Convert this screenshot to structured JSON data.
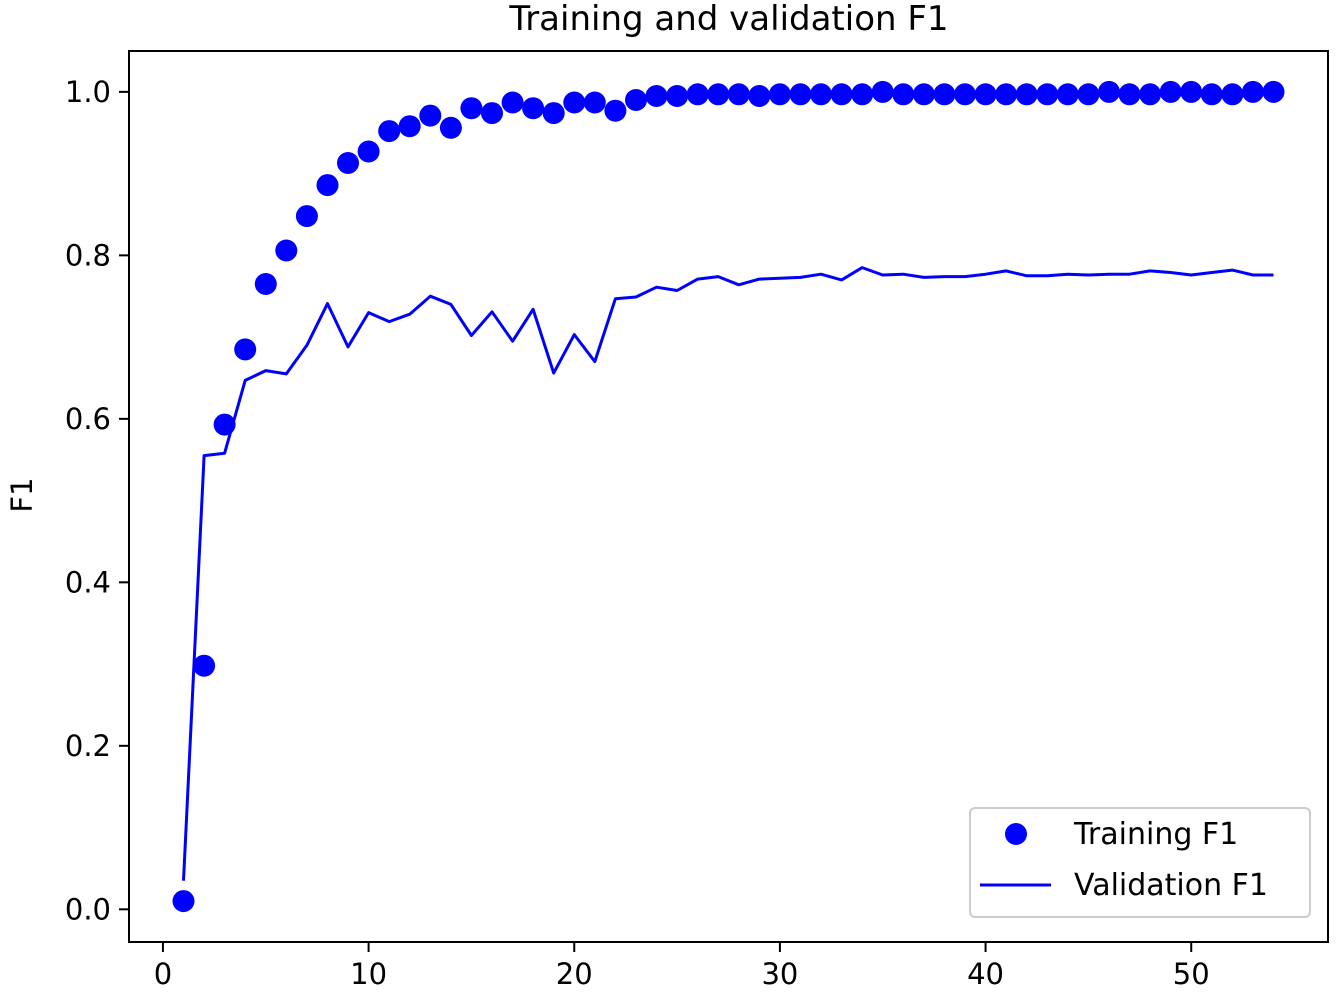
{
  "chart_data": {
    "type": "line",
    "title": "Training and validation F1",
    "xlabel": "",
    "ylabel": "F1",
    "xlim": [
      -1.65,
      56.65
    ],
    "ylim": [
      -0.04,
      1.05
    ],
    "xticks": [
      0,
      10,
      20,
      30,
      40,
      50
    ],
    "yticks": [
      0.0,
      0.2,
      0.4,
      0.6,
      0.8,
      1.0
    ],
    "xtick_labels": [
      "0",
      "10",
      "20",
      "30",
      "40",
      "50"
    ],
    "ytick_labels": [
      "0.0",
      "0.2",
      "0.4",
      "0.6",
      "0.8",
      "1.0"
    ],
    "grid": false,
    "legend_position": "lower-right",
    "colors": {
      "series": "#0000ff"
    },
    "series": [
      {
        "name": "Training F1",
        "style": "markers",
        "x": [
          1,
          2,
          3,
          4,
          5,
          6,
          7,
          8,
          9,
          10,
          11,
          12,
          13,
          14,
          15,
          16,
          17,
          18,
          19,
          20,
          21,
          22,
          23,
          24,
          25,
          26,
          27,
          28,
          29,
          30,
          31,
          32,
          33,
          34,
          35,
          36,
          37,
          38,
          39,
          40,
          41,
          42,
          43,
          44,
          45,
          46,
          47,
          48,
          49,
          50,
          51,
          52,
          53,
          54
        ],
        "y": [
          0.01,
          0.298,
          0.593,
          0.685,
          0.765,
          0.806,
          0.848,
          0.886,
          0.913,
          0.927,
          0.952,
          0.958,
          0.971,
          0.956,
          0.98,
          0.974,
          0.987,
          0.98,
          0.974,
          0.987,
          0.987,
          0.977,
          0.99,
          0.995,
          0.995,
          0.997,
          0.997,
          0.997,
          0.995,
          0.997,
          0.997,
          0.997,
          0.997,
          0.997,
          1.0,
          0.997,
          0.997,
          0.997,
          0.997,
          0.997,
          0.997,
          0.997,
          0.997,
          0.997,
          0.997,
          1.0,
          0.997,
          0.997,
          1.0,
          1.0,
          0.997,
          0.997,
          1.0,
          1.0
        ]
      },
      {
        "name": "Validation F1",
        "style": "line",
        "x": [
          1,
          2,
          3,
          4,
          5,
          6,
          7,
          8,
          9,
          10,
          11,
          12,
          13,
          14,
          15,
          16,
          17,
          18,
          19,
          20,
          21,
          22,
          23,
          24,
          25,
          26,
          27,
          28,
          29,
          30,
          31,
          32,
          33,
          34,
          35,
          36,
          37,
          38,
          39,
          40,
          41,
          42,
          43,
          44,
          45,
          46,
          47,
          48,
          49,
          50,
          51,
          52,
          53,
          54
        ],
        "y": [
          0.035,
          0.555,
          0.558,
          0.647,
          0.659,
          0.655,
          0.69,
          0.741,
          0.688,
          0.73,
          0.719,
          0.728,
          0.75,
          0.74,
          0.702,
          0.731,
          0.695,
          0.734,
          0.656,
          0.703,
          0.67,
          0.747,
          0.749,
          0.761,
          0.757,
          0.771,
          0.774,
          0.764,
          0.771,
          0.772,
          0.773,
          0.777,
          0.77,
          0.785,
          0.776,
          0.777,
          0.773,
          0.774,
          0.774,
          0.777,
          0.781,
          0.775,
          0.775,
          0.777,
          0.776,
          0.777,
          0.777,
          0.781,
          0.779,
          0.776,
          0.779,
          0.782,
          0.776,
          0.776
        ]
      }
    ]
  }
}
